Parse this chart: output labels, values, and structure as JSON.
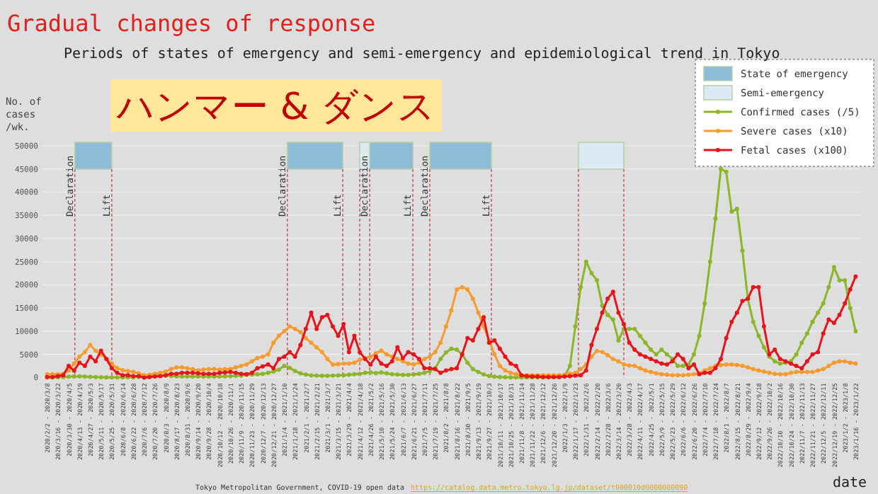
{
  "chart_data": {
    "type": "line",
    "title": "Gradual changes of response",
    "subtitle": "Periods of states of emergency and semi-emergency and epidemiological trend in Tokyo",
    "xlabel": "date",
    "ylabel": "No. of\ncases\n/wk.",
    "annotations": [
      "ハンマー & ダンス",
      "Tokyo Metropolitan Government, COVID-19 open data",
      "https://catalog.data.metro.tokyo.lg.jp/dataset/t000010d0000000090"
    ],
    "x": [
      "2020-03-02",
      "2020-03-09",
      "2020-03-16",
      "2020-03-23",
      "2020-03-30",
      "2020-04-06",
      "2020-04-13",
      "2020-04-20",
      "2020-04-27",
      "2020-05-04",
      "2020-05-11",
      "2020-05-18",
      "2020-05-25",
      "2020-06-01",
      "2020-06-08",
      "2020-06-15",
      "2020-06-22",
      "2020-06-29",
      "2020-07-06",
      "2020-07-13",
      "2020-07-20",
      "2020-07-27",
      "2020-08-03",
      "2020-08-10",
      "2020-08-17",
      "2020-08-24",
      "2020-08-31",
      "2020-09-07",
      "2020-09-14",
      "2020-09-21",
      "2020-09-28",
      "2020-10-05",
      "2020-10-12",
      "2020-10-19",
      "2020-10-26",
      "2020-11-02",
      "2020-11-09",
      "2020-11-16",
      "2020-11-23",
      "2020-11-30",
      "2020-12-07",
      "2020-12-14",
      "2020-12-21",
      "2020-12-28",
      "2021-01-04",
      "2021-01-11",
      "2021-01-18",
      "2021-01-25",
      "2021-02-01",
      "2021-02-08",
      "2021-02-15",
      "2021-02-22",
      "2021-03-01",
      "2021-03-08",
      "2021-03-15",
      "2021-03-22",
      "2021-03-29",
      "2021-04-05",
      "2021-04-12",
      "2021-04-19",
      "2021-04-26",
      "2021-05-03",
      "2021-05-10",
      "2021-05-17",
      "2021-05-24",
      "2021-05-31",
      "2021-06-07",
      "2021-06-14",
      "2021-06-21",
      "2021-06-28",
      "2021-07-05",
      "2021-07-12",
      "2021-07-19",
      "2021-07-26",
      "2021-08-02",
      "2021-08-09",
      "2021-08-16",
      "2021-08-23",
      "2021-08-30",
      "2021-09-06",
      "2021-09-13",
      "2021-09-20",
      "2021-09-27",
      "2021-10-04",
      "2021-10-11",
      "2021-10-18",
      "2021-10-25",
      "2021-11-01",
      "2021-11-08",
      "2021-11-15",
      "2021-11-22",
      "2021-11-29",
      "2021-12-06",
      "2021-12-13",
      "2021-12-20",
      "2021-12-27",
      "2022-01-03",
      "2022-01-10",
      "2022-01-17",
      "2022-01-24",
      "2022-01-31",
      "2022-02-07",
      "2022-02-14",
      "2022-02-21",
      "2022-02-28",
      "2022-03-07",
      "2022-03-14",
      "2022-03-21",
      "2022-03-28",
      "2022-04-04",
      "2022-04-11",
      "2022-04-18",
      "2022-04-25",
      "2022-05-02",
      "2022-05-09",
      "2022-05-16",
      "2022-05-23",
      "2022-05-30",
      "2022-06-06",
      "2022-06-13",
      "2022-06-20",
      "2022-06-27",
      "2022-07-04",
      "2022-07-11",
      "2022-07-18",
      "2022-07-25",
      "2022-08-01",
      "2022-08-08",
      "2022-08-15",
      "2022-08-22",
      "2022-08-29",
      "2022-09-05",
      "2022-09-12",
      "2022-09-19",
      "2022-09-26",
      "2022-10-03",
      "2022-10-10",
      "2022-10-17",
      "2022-10-24",
      "2022-10-31",
      "2022-11-07",
      "2022-11-14",
      "2022-11-21",
      "2022-11-28",
      "2022-12-05",
      "2022-12-12",
      "2022-12-19",
      "2022-12-26",
      "2023-01-02",
      "2023-01-09",
      "2023-01-16"
    ],
    "series": [
      {
        "name": "Confirmed cases (/5)",
        "color": "#8db52a",
        "values": [
          20,
          30,
          50,
          100,
          180,
          220,
          250,
          200,
          150,
          100,
          50,
          30,
          20,
          30,
          40,
          50,
          80,
          150,
          250,
          350,
          400,
          430,
          400,
          320,
          250,
          220,
          200,
          200,
          200,
          220,
          230,
          220,
          230,
          250,
          300,
          350,
          420,
          550,
          650,
          700,
          800,
          1000,
          1300,
          1700,
          2500,
          2100,
          1400,
          900,
          650,
          460,
          400,
          360,
          360,
          400,
          440,
          500,
          580,
          700,
          800,
          1000,
          1080,
          950,
          1100,
          900,
          700,
          620,
          540,
          560,
          660,
          800,
          1000,
          1400,
          2000,
          4000,
          5400,
          6200,
          6000,
          5000,
          3200,
          1800,
          1200,
          660,
          320,
          160,
          100,
          60,
          40,
          40,
          40,
          40,
          40,
          40,
          40,
          40,
          50,
          100,
          300,
          2500,
          11000,
          19500,
          25000,
          22500,
          21000,
          15500,
          13500,
          12500,
          8000,
          10500,
          10500,
          10500,
          9000,
          7500,
          6000,
          5000,
          6000,
          5000,
          4000,
          2500,
          2500,
          2800,
          5000,
          9000,
          16000,
          25000,
          34300,
          45000,
          44400,
          35800,
          36400,
          27400,
          17000,
          12000,
          9000,
          6500,
          4500,
          3500,
          3000,
          3200,
          3500,
          5000,
          7500,
          9500,
          12000,
          14000,
          16000,
          19500,
          23800,
          21000,
          21000,
          15000,
          10000
        ]
      },
      {
        "name": "Severe cases (x10)",
        "color": "#f79b2e",
        "values": [
          700,
          700,
          700,
          800,
          1500,
          3000,
          4500,
          5500,
          7000,
          5800,
          5000,
          4000,
          3000,
          2000,
          1600,
          1400,
          1200,
          900,
          500,
          600,
          800,
          1000,
          1300,
          1800,
          2200,
          2200,
          2000,
          1800,
          1500,
          1700,
          1800,
          1800,
          1700,
          1800,
          1800,
          2200,
          2500,
          2800,
          3500,
          4200,
          4500,
          5000,
          7500,
          9000,
          10000,
          11000,
          10500,
          9800,
          8500,
          7500,
          6500,
          5500,
          4000,
          2800,
          2900,
          3000,
          3000,
          3200,
          3800,
          4200,
          4500,
          5200,
          5800,
          5000,
          4500,
          4000,
          3500,
          3000,
          2800,
          3200,
          4000,
          4500,
          5500,
          7500,
          11000,
          14500,
          19000,
          19500,
          19000,
          17000,
          14000,
          11000,
          8000,
          5000,
          2500,
          1500,
          1000,
          700,
          500,
          500,
          500,
          500,
          500,
          500,
          500,
          500,
          600,
          800,
          1000,
          1800,
          2800,
          4500,
          5700,
          5500,
          4800,
          4000,
          3500,
          2800,
          2600,
          2500,
          2000,
          1500,
          1200,
          900,
          700,
          600,
          500,
          500,
          500,
          600,
          700,
          900,
          1500,
          2000,
          2500,
          2700,
          2800,
          2800,
          2700,
          2500,
          2200,
          1800,
          1500,
          1300,
          1000,
          800,
          700,
          700,
          1000,
          1200,
          1200,
          1200,
          1200,
          1500,
          1800,
          2500,
          3200,
          3500,
          3500,
          3200,
          3000
        ]
      },
      {
        "name": "Fetal cases (x100)",
        "color": "#e8141b",
        "values": [
          100,
          100,
          300,
          500,
          2500,
          1500,
          3200,
          2500,
          4500,
          3500,
          5800,
          4000,
          2000,
          1000,
          500,
          500,
          300,
          300,
          0,
          100,
          200,
          300,
          500,
          800,
          800,
          1000,
          1000,
          1000,
          900,
          800,
          800,
          800,
          1000,
          1100,
          1200,
          1000,
          800,
          700,
          1000,
          2000,
          2400,
          2800,
          2000,
          4000,
          4500,
          5500,
          4500,
          7000,
          10500,
          14000,
          10500,
          13000,
          13500,
          11000,
          9000,
          11500,
          5500,
          9000,
          5500,
          4000,
          2800,
          4500,
          3000,
          2500,
          3500,
          6500,
          4200,
          5500,
          5000,
          4000,
          2000,
          2000,
          1800,
          1000,
          1500,
          1800,
          2000,
          5000,
          8500,
          8000,
          10500,
          13000,
          7500,
          8000,
          6200,
          4500,
          3000,
          2500,
          500,
          300,
          200,
          200,
          100,
          100,
          100,
          100,
          200,
          300,
          400,
          500,
          1500,
          7000,
          10500,
          14000,
          17000,
          18500,
          14000,
          11500,
          7500,
          6000,
          5000,
          4500,
          4000,
          3500,
          3000,
          2800,
          3500,
          5000,
          4000,
          2000,
          2800,
          700,
          1000,
          1000,
          2000,
          4000,
          8500,
          12000,
          14000,
          16500,
          17000,
          19500,
          19500,
          11000,
          5000,
          6000,
          4000,
          3500,
          3000,
          2500,
          2000,
          3500,
          5000,
          5500,
          9500,
          12500,
          11800,
          13500,
          16000,
          19000,
          21800
        ]
      }
    ],
    "xlim": [
      "2020-02-25",
      "2023-01-23"
    ],
    "xticks": [
      {
        "value": "2020-03-02",
        "label": "2020/2/2 - 2020/3/8"
      },
      {
        "value": "2020-03-16",
        "label": "2020/3/16 - 2020/3/22"
      },
      {
        "value": "2020-03-30",
        "label": "2020/3/30 - 2020/4/5"
      },
      {
        "value": "2020-04-13",
        "label": "2020/4/13 - 2020/4/19"
      },
      {
        "value": "2020-04-27",
        "label": "2020/4/27 - 2020/5/3"
      },
      {
        "value": "2020-05-11",
        "label": "2020/5/11 - 2020/5/17"
      },
      {
        "value": "2020-05-25",
        "label": "2020/5/25 - 2020/5/31"
      },
      {
        "value": "2020-06-08",
        "label": "2020/6/8 - 2020/6/14"
      },
      {
        "value": "2020-06-22",
        "label": "2020/6/22 - 2020/6/28"
      },
      {
        "value": "2020-07-06",
        "label": "2020/7/6 - 2020/7/12"
      },
      {
        "value": "2020-07-20",
        "label": "2020/7/20 - 2020/7/26"
      },
      {
        "value": "2020-08-03",
        "label": "2020/8/3 - 2020/8/9"
      },
      {
        "value": "2020-08-17",
        "label": "2020/8/17 - 2020/8/23"
      },
      {
        "value": "2020-08-31",
        "label": "2020/8/31 - 2020/9/6"
      },
      {
        "value": "2020-09-14",
        "label": "2020/9/14 - 2020/9/20"
      },
      {
        "value": "2020-09-28",
        "label": "2020/9/28 - 2020/10/4"
      },
      {
        "value": "2020-10-12",
        "label": "2020/10/12 - 2020/10/18"
      },
      {
        "value": "2020-10-26",
        "label": "2020/10/26 - 2020/11/1"
      },
      {
        "value": "2020-11-09",
        "label": "2020/11/9 - 2020/11/15"
      },
      {
        "value": "2020-11-23",
        "label": "2020/11/23 - 2020/11/29"
      },
      {
        "value": "2020-12-07",
        "label": "2020/12/7 - 2020/12/13"
      },
      {
        "value": "2020-12-21",
        "label": "2020/12/21 - 2020/12/27"
      },
      {
        "value": "2021-01-04",
        "label": "2021/1/4 - 2021/1/10"
      },
      {
        "value": "2021-01-18",
        "label": "2021/1/18 - 2021/1/24"
      },
      {
        "value": "2021-02-01",
        "label": "2021/2/1 - 2021/2/7"
      },
      {
        "value": "2021-02-15",
        "label": "2021/2/15 - 2021/2/21"
      },
      {
        "value": "2021-03-01",
        "label": "2021/3/1 - 2021/3/7"
      },
      {
        "value": "2021-03-15",
        "label": "2021/3/15 - 2021/3/21"
      },
      {
        "value": "2021-03-29",
        "label": "2021/3/29 - 2021/4/4"
      },
      {
        "value": "2021-04-12",
        "label": "2021/4/12 - 2021/4/18"
      },
      {
        "value": "2021-04-26",
        "label": "2021/4/26 - 2021/5/2"
      },
      {
        "value": "2021-05-10",
        "label": "2021/5/10 - 2021/5/16"
      },
      {
        "value": "2021-05-24",
        "label": "2021/5/24 - 2021/5/30"
      },
      {
        "value": "2021-06-07",
        "label": "2021/6/7 - 2021/6/13"
      },
      {
        "value": "2021-06-21",
        "label": "2021/6/21 - 2021/6/27"
      },
      {
        "value": "2021-07-05",
        "label": "2021/7/5 - 2021/7/11"
      },
      {
        "value": "2021-07-19",
        "label": "2021/7/19 - 2021/7/25"
      },
      {
        "value": "2021-08-02",
        "label": "2021/8/2 - 2021/8/8"
      },
      {
        "value": "2021-08-16",
        "label": "2021/8/16 - 2021/8/22"
      },
      {
        "value": "2021-08-30",
        "label": "2021/8/30 - 2021/9/5"
      },
      {
        "value": "2021-09-13",
        "label": "2021/9/13 - 2021/9/19"
      },
      {
        "value": "2021-09-27",
        "label": "2021/9/27 - 2021/10/3"
      },
      {
        "value": "2021-10-11",
        "label": "2021/10/11 - 2021/10/17"
      },
      {
        "value": "2021-10-25",
        "label": "2021/10/25 - 2021/10/31"
      },
      {
        "value": "2021-11-08",
        "label": "2021/11/8 - 2021/11/14"
      },
      {
        "value": "2021-11-22",
        "label": "2021/11/22 - 2021/11/28"
      },
      {
        "value": "2021-12-06",
        "label": "2021/12/6 - 2021/12/12"
      },
      {
        "value": "2021-12-20",
        "label": "2021/12/20 - 2021/12/26"
      },
      {
        "value": "2022-01-03",
        "label": "2022/1/3 - 2022/1/9"
      },
      {
        "value": "2022-01-17",
        "label": "2022/1/17 - 2022/1/23"
      },
      {
        "value": "2022-01-31",
        "label": "2022/1/31 - 2022/2/6"
      },
      {
        "value": "2022-02-14",
        "label": "2022/2/14 - 2022/2/20"
      },
      {
        "value": "2022-02-28",
        "label": "2022/2/28 - 2022/3/6"
      },
      {
        "value": "2022-03-14",
        "label": "2022/3/14 - 2022/3/20"
      },
      {
        "value": "2022-03-28",
        "label": "2022/3/28 - 2022/4/3"
      },
      {
        "value": "2022-04-11",
        "label": "2022/4/11 - 2022/4/17"
      },
      {
        "value": "2022-04-25",
        "label": "2022/4/25 - 2022/5/1"
      },
      {
        "value": "2022-05-09",
        "label": "2022/5/9 - 2022/5/15"
      },
      {
        "value": "2022-05-23",
        "label": "2022/5/23 - 2022/5/29"
      },
      {
        "value": "2022-06-06",
        "label": "2022/6/6 - 2022/6/12"
      },
      {
        "value": "2022-06-20",
        "label": "2022/6/20 - 2022/6/26"
      },
      {
        "value": "2022-07-04",
        "label": "2022/7/4 - 2022/7/10"
      },
      {
        "value": "2022-07-18",
        "label": "2022/7/18 - 2022/7/24"
      },
      {
        "value": "2022-08-01",
        "label": "2022/8/1 - 2022/8/7"
      },
      {
        "value": "2022-08-15",
        "label": "2022/8/15 - 2022/8/21"
      },
      {
        "value": "2022-08-29",
        "label": "2022/8/29 - 2022/9/4"
      },
      {
        "value": "2022-09-12",
        "label": "2022/9/12 - 2022/9/18"
      },
      {
        "value": "2022-09-26",
        "label": "2022/9/26 - 2022/10/2"
      },
      {
        "value": "2022-10-10",
        "label": "2022/10/10 - 2022/10/16"
      },
      {
        "value": "2022-10-24",
        "label": "2022/10/24 - 2022/10/30"
      },
      {
        "value": "2022-11-07",
        "label": "2022/11/7 - 2022/11/13"
      },
      {
        "value": "2022-11-21",
        "label": "2022/11/21 - 2022/11/27"
      },
      {
        "value": "2022-12-05",
        "label": "2022/12/5 - 2022/12/11"
      },
      {
        "value": "2022-12-19",
        "label": "2022/12/19 - 2022/12/25"
      },
      {
        "value": "2023-01-02",
        "label": "2023/1/2 - 2023/1/8"
      },
      {
        "value": "2023-01-16",
        "label": "2023/1/16 - 2023/1/22"
      }
    ],
    "ylim": [
      0,
      50000
    ],
    "yticks": [
      0,
      5000,
      10000,
      15000,
      20000,
      25000,
      30000,
      35000,
      40000,
      45000,
      50000
    ],
    "grid": "y",
    "legend": "top right",
    "marker": "circle",
    "bands": [
      {
        "axis": "x",
        "from": "2020-04-07",
        "to": "2020-05-25",
        "label": "State of emergency",
        "color": "#8cbcd8"
      },
      {
        "axis": "x",
        "from": "2021-01-08",
        "to": "2021-03-21",
        "label": null,
        "color": "#8cbcd8"
      },
      {
        "axis": "x",
        "from": "2021-04-12",
        "to": "2021-04-25",
        "label": "Semi-emergency",
        "color": "#dcebf3"
      },
      {
        "axis": "x",
        "from": "2021-04-25",
        "to": "2021-06-20",
        "label": null,
        "color": "#8cbcd8"
      },
      {
        "axis": "x",
        "from": "2021-07-12",
        "to": "2021-09-30",
        "label": null,
        "color": "#8cbcd8"
      },
      {
        "axis": "x",
        "from": "2022-01-21",
        "to": "2022-03-21",
        "label": null,
        "color": "#dcebf3"
      }
    ],
    "ref_lines": [
      {
        "axis": "x",
        "value": "2020-04-07",
        "label": "Declaration",
        "color": "#c0504d",
        "line_style": "dashed"
      },
      {
        "axis": "x",
        "value": "2020-05-25",
        "label": "Lift",
        "color": "#c0504d",
        "line_style": "dashed"
      },
      {
        "axis": "x",
        "value": "2021-01-08",
        "label": "Declaration",
        "color": "#c0504d",
        "line_style": "dashed"
      },
      {
        "axis": "x",
        "value": "2021-03-21",
        "label": "Lift",
        "color": "#c0504d",
        "line_style": "dashed"
      },
      {
        "axis": "x",
        "value": "2021-04-12",
        "label": null,
        "color": "#c0504d",
        "line_style": "dashed"
      },
      {
        "axis": "x",
        "value": "2021-04-25",
        "label": "Declaration",
        "color": "#c0504d",
        "line_style": "dashed"
      },
      {
        "axis": "x",
        "value": "2021-06-20",
        "label": "Lift",
        "color": "#c0504d",
        "line_style": "dashed"
      },
      {
        "axis": "x",
        "value": "2021-07-12",
        "label": "Declaration",
        "color": "#c0504d",
        "line_style": "dashed"
      },
      {
        "axis": "x",
        "value": "2021-09-30",
        "label": "Lift",
        "color": "#c0504d",
        "line_style": "dashed"
      },
      {
        "axis": "x",
        "value": "2022-01-21",
        "label": null,
        "color": "#c0504d",
        "line_style": "dashed"
      },
      {
        "axis": "x",
        "value": "2022-03-21",
        "label": null,
        "color": "#c0504d",
        "line_style": "dashed"
      }
    ]
  }
}
